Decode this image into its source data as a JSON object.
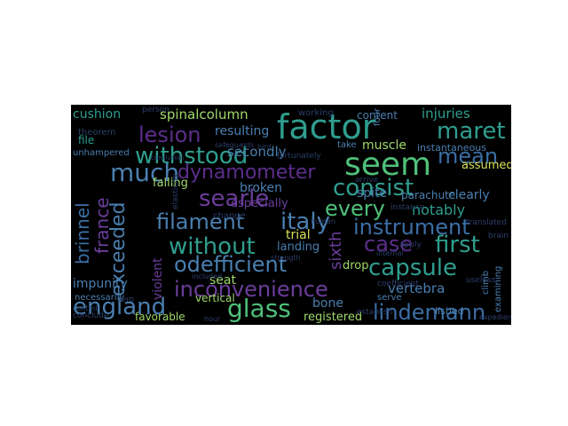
{
  "palette": {
    "purple": "#5b2e8c",
    "violet": "#6a3d9a",
    "blue": "#3b6ea5",
    "steel": "#4a7fb0",
    "teal": "#2f9e8f",
    "green": "#4fc07a",
    "lime": "#9fd86a",
    "yellow": "#d6e25a",
    "dim": "#2c3e6b"
  },
  "words": [
    {
      "text": "factor",
      "color": "teal"
    },
    {
      "text": "seem",
      "color": "green"
    },
    {
      "text": "maret",
      "color": "teal"
    },
    {
      "text": "mean",
      "color": "blue"
    },
    {
      "text": "lesion",
      "color": "purple"
    },
    {
      "text": "withstood",
      "color": "teal"
    },
    {
      "text": "much",
      "color": "steel"
    },
    {
      "text": "dynamometer",
      "color": "purple"
    },
    {
      "text": "consist",
      "color": "teal"
    },
    {
      "text": "searle",
      "color": "violet"
    },
    {
      "text": "every",
      "color": "green"
    },
    {
      "text": "filament",
      "color": "steel"
    },
    {
      "text": "italy",
      "color": "steel"
    },
    {
      "text": "instrument",
      "color": "blue"
    },
    {
      "text": "without",
      "color": "teal"
    },
    {
      "text": "case",
      "color": "purple"
    },
    {
      "text": "first",
      "color": "teal"
    },
    {
      "text": "odefficient",
      "color": "steel"
    },
    {
      "text": "capsule",
      "color": "teal"
    },
    {
      "text": "inconvenience",
      "color": "violet"
    },
    {
      "text": "england",
      "color": "steel"
    },
    {
      "text": "glass",
      "color": "green"
    },
    {
      "text": "lindemann",
      "color": "blue"
    },
    {
      "text": "exceeded",
      "color": "steel"
    },
    {
      "text": "france",
      "color": "violet"
    },
    {
      "text": "brinnel",
      "color": "blue"
    },
    {
      "text": "cushion",
      "color": "teal"
    },
    {
      "text": "spinalcolumn",
      "color": "lime"
    },
    {
      "text": "injuries",
      "color": "teal"
    },
    {
      "text": "resulting",
      "color": "steel"
    },
    {
      "text": "secondly",
      "color": "steel"
    },
    {
      "text": "muscle",
      "color": "lime"
    },
    {
      "text": "broken",
      "color": "steel"
    },
    {
      "text": "especially",
      "color": "violet"
    },
    {
      "text": "parachute",
      "color": "steel"
    },
    {
      "text": "notably",
      "color": "teal"
    },
    {
      "text": "clearly",
      "color": "steel"
    },
    {
      "text": "assumed",
      "color": "yellow"
    },
    {
      "text": "falling",
      "color": "lime"
    },
    {
      "text": "spite",
      "color": "steel"
    },
    {
      "text": "trial",
      "color": "yellow"
    },
    {
      "text": "landing",
      "color": "steel"
    },
    {
      "text": "sixth",
      "color": "violet"
    },
    {
      "text": "vertebra",
      "color": "steel"
    },
    {
      "text": "violent",
      "color": "violet"
    },
    {
      "text": "impunity",
      "color": "steel"
    },
    {
      "text": "vertical",
      "color": "lime"
    },
    {
      "text": "seat",
      "color": "lime"
    },
    {
      "text": "bone",
      "color": "steel"
    },
    {
      "text": "registered",
      "color": "lime"
    },
    {
      "text": "favorable",
      "color": "lime"
    },
    {
      "text": "drop",
      "color": "lime"
    },
    {
      "text": "content",
      "color": "steel"
    },
    {
      "text": "file",
      "color": "teal"
    },
    {
      "text": "take",
      "color": "steel"
    },
    {
      "text": "instantaneous",
      "color": "steel"
    },
    {
      "text": "examining",
      "color": "steel"
    },
    {
      "text": "lished",
      "color": "steel"
    },
    {
      "text": "climb",
      "color": "steel"
    },
    {
      "text": "coefficient",
      "color": "dim"
    },
    {
      "text": "serve",
      "color": "steel"
    },
    {
      "text": "necessarily",
      "color": "steel"
    },
    {
      "text": "conclude",
      "color": "dim"
    },
    {
      "text": "control",
      "color": "dim"
    },
    {
      "text": "unhampered",
      "color": "steel"
    },
    {
      "text": "theorem",
      "color": "dim"
    },
    {
      "text": "elasticity",
      "color": "dim"
    },
    {
      "text": "four",
      "color": "steel"
    },
    {
      "text": "zero",
      "color": "dim"
    },
    {
      "text": "hour",
      "color": "dim"
    },
    {
      "text": "fortunately",
      "color": "dim"
    },
    {
      "text": "safeguards",
      "color": "dim"
    },
    {
      "text": "translated",
      "color": "dim"
    },
    {
      "text": "working",
      "color": "dim"
    },
    {
      "text": "change",
      "color": "dim"
    },
    {
      "text": "human",
      "color": "dim"
    },
    {
      "text": "apply",
      "color": "dim"
    },
    {
      "text": "internal",
      "color": "dim"
    },
    {
      "text": "establish",
      "color": "dim"
    },
    {
      "text": "instance",
      "color": "dim"
    },
    {
      "text": "arrive",
      "color": "dim"
    },
    {
      "text": "bird",
      "color": "dim"
    },
    {
      "text": "brain",
      "color": "dim"
    },
    {
      "text": "useless",
      "color": "dim"
    },
    {
      "text": "expedient",
      "color": "dim"
    },
    {
      "text": "included",
      "color": "dim"
    },
    {
      "text": "strength",
      "color": "dim"
    },
    {
      "text": "person",
      "color": "dim"
    },
    {
      "text": "conclusion",
      "color": "dim"
    }
  ]
}
